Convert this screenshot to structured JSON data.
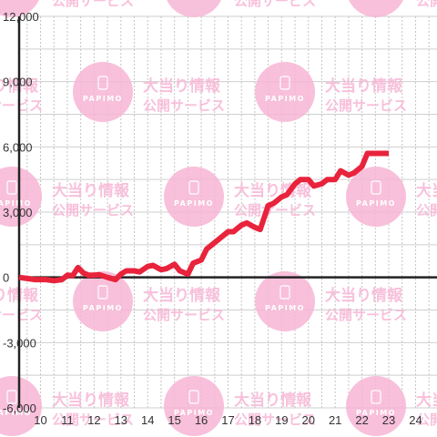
{
  "watermark": {
    "title": "大当り情報",
    "subtitle": "公開サービス",
    "brand": "PAPIMO",
    "color": "#f7b6d5"
  },
  "chart_data": {
    "type": "line",
    "title": "",
    "xlabel": "",
    "ylabel": "",
    "xlim": [
      9.2,
      24.8
    ],
    "ylim": [
      -6000,
      12000
    ],
    "x_ticks": [
      "10",
      "11",
      "12",
      "13",
      "14",
      "15",
      "16",
      "17",
      "18",
      "19",
      "20",
      "21",
      "22",
      "23",
      "24"
    ],
    "y_ticks": [
      "12,000",
      "9,000",
      "6,000",
      "3,000",
      "0",
      "-3,000",
      "-6,000"
    ],
    "grid": true,
    "line_color": "#e8233b",
    "series": [
      {
        "x": [
          9.2,
          9.5,
          9.8,
          10.2,
          10.5,
          10.8,
          11.0,
          11.2,
          11.4,
          11.6,
          11.8,
          12.0,
          12.2,
          12.5,
          12.8,
          13.0,
          13.2,
          13.5,
          13.7,
          14.0,
          14.2,
          14.5,
          14.7,
          15.0,
          15.2,
          15.5,
          15.7,
          16.0,
          16.2,
          16.5,
          16.7,
          17.0,
          17.2,
          17.5,
          17.7,
          18.0,
          18.2,
          18.5,
          18.7,
          19.0,
          19.2,
          19.5,
          19.7,
          20.0,
          20.2,
          20.5,
          20.7,
          21.0,
          21.2,
          21.5,
          21.7,
          22.0,
          22.2,
          22.5,
          22.7,
          23.0
        ],
        "y": [
          0,
          -50,
          -100,
          -100,
          -150,
          -100,
          100,
          80,
          450,
          200,
          100,
          100,
          120,
          0,
          -100,
          150,
          300,
          300,
          250,
          500,
          550,
          350,
          400,
          600,
          300,
          150,
          650,
          800,
          1300,
          1600,
          1800,
          2100,
          2100,
          2400,
          2500,
          2300,
          2200,
          3300,
          3400,
          3700,
          3800,
          4300,
          4500,
          4500,
          4200,
          4300,
          4500,
          4500,
          4900,
          4700,
          4800,
          5100,
          5700,
          5700,
          5700,
          5700
        ]
      }
    ]
  }
}
